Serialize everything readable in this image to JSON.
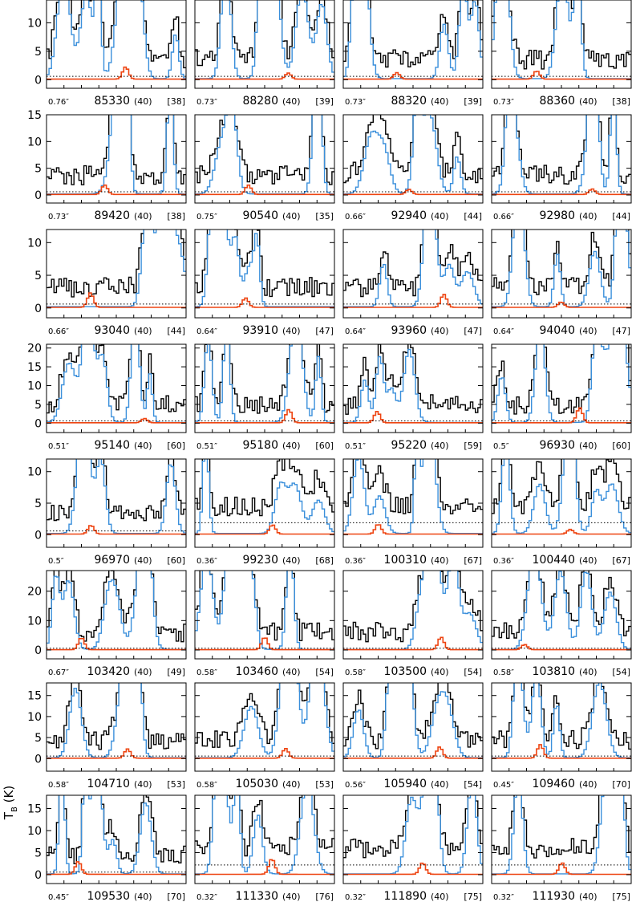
{
  "chart_data": {
    "type": "line",
    "ylabel": "T",
    "ylabel_sub": "B",
    "ylabel_unit": "(K)",
    "series_colors": {
      "observed": "#000000",
      "model_total": "#3a8fdb",
      "model_species": "#ee4411"
    },
    "panels": [
      {
        "row": 0,
        "col": 0,
        "beam": "0.76″",
        "freq": "85330",
        "n_a": "(40)",
        "n_b": "[38]",
        "ylim": [
          -1.5,
          14
        ],
        "yticks": [
          0,
          5,
          10
        ],
        "threshold": 0.6
      },
      {
        "row": 0,
        "col": 1,
        "beam": "0.73″",
        "freq": "88280",
        "n_a": "(40)",
        "n_b": "[39]",
        "ylim": [
          -1.5,
          14
        ],
        "yticks": [
          0,
          5,
          10
        ],
        "threshold": 0.6
      },
      {
        "row": 0,
        "col": 2,
        "beam": "0.73″",
        "freq": "88320",
        "n_a": "(40)",
        "n_b": "[39]",
        "ylim": [
          -1.5,
          14
        ],
        "yticks": [
          0,
          5,
          10
        ],
        "threshold": 0.6
      },
      {
        "row": 0,
        "col": 3,
        "beam": "0.73″",
        "freq": "88360",
        "n_a": "(40)",
        "n_b": "[38]",
        "ylim": [
          -1.5,
          14
        ],
        "yticks": [
          0,
          5,
          10
        ],
        "threshold": 0.6
      },
      {
        "row": 1,
        "col": 0,
        "beam": "0.73″",
        "freq": "89420",
        "n_a": "(40)",
        "n_b": "[38]",
        "ylim": [
          -1.5,
          15
        ],
        "yticks": [
          0,
          5,
          10,
          15
        ],
        "threshold": 0.6
      },
      {
        "row": 1,
        "col": 1,
        "beam": "0.75″",
        "freq": "90540",
        "n_a": "(40)",
        "n_b": "[35]",
        "ylim": [
          -1.5,
          15
        ],
        "yticks": [
          0,
          5,
          10,
          15
        ],
        "threshold": 0.6
      },
      {
        "row": 1,
        "col": 2,
        "beam": "0.66″",
        "freq": "92940",
        "n_a": "(40)",
        "n_b": "[44]",
        "ylim": [
          -1.5,
          15
        ],
        "yticks": [
          0,
          5,
          10,
          15
        ],
        "threshold": 0.6
      },
      {
        "row": 1,
        "col": 3,
        "beam": "0.66″",
        "freq": "92980",
        "n_a": "(40)",
        "n_b": "[44]",
        "ylim": [
          -1.5,
          15
        ],
        "yticks": [
          0,
          5,
          10,
          15
        ],
        "threshold": 0.6
      },
      {
        "row": 2,
        "col": 0,
        "beam": "0.66″",
        "freq": "93040",
        "n_a": "(40)",
        "n_b": "[44]",
        "ylim": [
          -1.5,
          12
        ],
        "yticks": [
          0,
          5,
          10
        ],
        "threshold": 0.6
      },
      {
        "row": 2,
        "col": 1,
        "beam": "0.64″",
        "freq": "93910",
        "n_a": "(40)",
        "n_b": "[47]",
        "ylim": [
          -1.5,
          12
        ],
        "yticks": [
          0,
          5,
          10
        ],
        "threshold": 0.6
      },
      {
        "row": 2,
        "col": 2,
        "beam": "0.64″",
        "freq": "93960",
        "n_a": "(40)",
        "n_b": "[47]",
        "ylim": [
          -1.5,
          12
        ],
        "yticks": [
          0,
          5,
          10
        ],
        "threshold": 0.6
      },
      {
        "row": 2,
        "col": 3,
        "beam": "0.64″",
        "freq": "94040",
        "n_a": "(40)",
        "n_b": "[47]",
        "ylim": [
          -1.5,
          12
        ],
        "yticks": [
          0,
          5,
          10
        ],
        "threshold": 0.6
      },
      {
        "row": 3,
        "col": 0,
        "beam": "0.51″",
        "freq": "95140",
        "n_a": "(40)",
        "n_b": "[60]",
        "ylim": [
          -2.5,
          21
        ],
        "yticks": [
          0,
          5,
          10,
          15,
          20
        ],
        "threshold": 0.6
      },
      {
        "row": 3,
        "col": 1,
        "beam": "0.51″",
        "freq": "95180",
        "n_a": "(40)",
        "n_b": "[60]",
        "ylim": [
          -2.5,
          21
        ],
        "yticks": [
          0,
          5,
          10,
          15,
          20
        ],
        "threshold": 0.6
      },
      {
        "row": 3,
        "col": 2,
        "beam": "0.51″",
        "freq": "95220",
        "n_a": "(40)",
        "n_b": "[59]",
        "ylim": [
          -2.5,
          21
        ],
        "yticks": [
          0,
          5,
          10,
          15,
          20
        ],
        "threshold": 0.6
      },
      {
        "row": 3,
        "col": 3,
        "beam": "0.5″",
        "freq": "96930",
        "n_a": "(40)",
        "n_b": "[60]",
        "ylim": [
          -2.5,
          21
        ],
        "yticks": [
          0,
          5,
          10,
          15,
          20
        ],
        "threshold": 0.6
      },
      {
        "row": 4,
        "col": 0,
        "beam": "0.5″",
        "freq": "96970",
        "n_a": "(40)",
        "n_b": "[60]",
        "ylim": [
          -2,
          12
        ],
        "yticks": [
          0,
          5,
          10
        ],
        "threshold": 0.6
      },
      {
        "row": 4,
        "col": 1,
        "beam": "0.36″",
        "freq": "99230",
        "n_a": "(40)",
        "n_b": "[68]",
        "ylim": [
          -2,
          12
        ],
        "yticks": [
          0,
          5,
          10
        ],
        "threshold": 1.9
      },
      {
        "row": 4,
        "col": 2,
        "beam": "0.36″",
        "freq": "100310",
        "n_a": "(40)",
        "n_b": "[67]",
        "ylim": [
          -2,
          12
        ],
        "yticks": [
          0,
          5,
          10
        ],
        "threshold": 1.9
      },
      {
        "row": 4,
        "col": 3,
        "beam": "0.36″",
        "freq": "100440",
        "n_a": "(40)",
        "n_b": "[67]",
        "ylim": [
          -2,
          12
        ],
        "yticks": [
          0,
          5,
          10
        ],
        "threshold": 1.9
      },
      {
        "row": 5,
        "col": 0,
        "beam": "0.67″",
        "freq": "103420",
        "n_a": "(40)",
        "n_b": "[49]",
        "ylim": [
          -3,
          27
        ],
        "yticks": [
          0,
          10,
          20
        ],
        "threshold": 0.6
      },
      {
        "row": 5,
        "col": 1,
        "beam": "0.58″",
        "freq": "103460",
        "n_a": "(40)",
        "n_b": "[54]",
        "ylim": [
          -3,
          27
        ],
        "yticks": [
          0,
          10,
          20
        ],
        "threshold": 0.6
      },
      {
        "row": 5,
        "col": 2,
        "beam": "0.58″",
        "freq": "103500",
        "n_a": "(40)",
        "n_b": "[54]",
        "ylim": [
          -3,
          27
        ],
        "yticks": [
          0,
          10,
          20
        ],
        "threshold": 0.6
      },
      {
        "row": 5,
        "col": 3,
        "beam": "0.58″",
        "freq": "103810",
        "n_a": "(40)",
        "n_b": "[54]",
        "ylim": [
          -3,
          27
        ],
        "yticks": [
          0,
          10,
          20
        ],
        "threshold": 0.6
      },
      {
        "row": 6,
        "col": 0,
        "beam": "0.58″",
        "freq": "104710",
        "n_a": "(40)",
        "n_b": "[53]",
        "ylim": [
          -3,
          18
        ],
        "yticks": [
          0,
          5,
          10,
          15
        ],
        "threshold": 0.6
      },
      {
        "row": 6,
        "col": 1,
        "beam": "0.58″",
        "freq": "105030",
        "n_a": "(40)",
        "n_b": "[53]",
        "ylim": [
          -3,
          18
        ],
        "yticks": [
          0,
          5,
          10,
          15
        ],
        "threshold": 0.6
      },
      {
        "row": 6,
        "col": 2,
        "beam": "0.56″",
        "freq": "105940",
        "n_a": "(40)",
        "n_b": "[54]",
        "ylim": [
          -3,
          18
        ],
        "yticks": [
          0,
          5,
          10,
          15
        ],
        "threshold": 0.6
      },
      {
        "row": 6,
        "col": 3,
        "beam": "0.45″",
        "freq": "109460",
        "n_a": "(40)",
        "n_b": "[70]",
        "ylim": [
          -3,
          18
        ],
        "yticks": [
          0,
          5,
          10,
          15
        ],
        "threshold": 0.6
      },
      {
        "row": 7,
        "col": 0,
        "beam": "0.45″",
        "freq": "109530",
        "n_a": "(40)",
        "n_b": "[70]",
        "ylim": [
          -2,
          18
        ],
        "yticks": [
          0,
          5,
          10,
          15
        ],
        "threshold": 0.6
      },
      {
        "row": 7,
        "col": 1,
        "beam": "0.32″",
        "freq": "111330",
        "n_a": "(40)",
        "n_b": "[76]",
        "ylim": [
          -2,
          18
        ],
        "yticks": [
          0,
          5,
          10,
          15
        ],
        "threshold": 2.2
      },
      {
        "row": 7,
        "col": 2,
        "beam": "0.32″",
        "freq": "111890",
        "n_a": "(40)",
        "n_b": "[75]",
        "ylim": [
          -2,
          18
        ],
        "yticks": [
          0,
          5,
          10,
          15
        ],
        "threshold": 2.2
      },
      {
        "row": 7,
        "col": 3,
        "beam": "0.32″",
        "freq": "111930",
        "n_a": "(40)",
        "n_b": "[75]",
        "ylim": [
          -2,
          18
        ],
        "yticks": [
          0,
          5,
          10,
          15
        ],
        "threshold": 2.2
      }
    ]
  }
}
